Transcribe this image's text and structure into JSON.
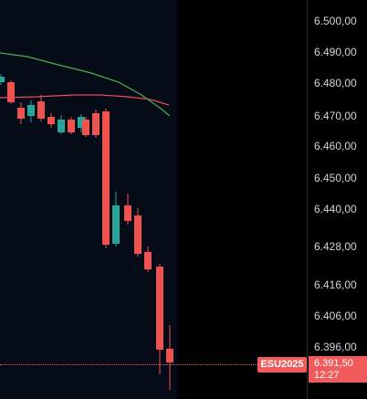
{
  "chart_data": {
    "type": "candlestick",
    "y_axis_ticks": [
      "6.500,00",
      "6.490,00",
      "6.480,00",
      "6.470,00",
      "6.460,00",
      "6.450,00",
      "6.440,00",
      "6.428,00",
      "6.416,00",
      "6.406,00",
      "6.396,00"
    ],
    "last_price": {
      "symbol": "ESU2025",
      "price": "6.391,50",
      "countdown": "12:27"
    },
    "colors": {
      "up": "#26a69a",
      "down": "#ef5350",
      "ma_fast": "#f04a5a",
      "ma_slow": "#4caf50",
      "plot_bg": "#050b17",
      "axis_bg": "#000000"
    }
  }
}
